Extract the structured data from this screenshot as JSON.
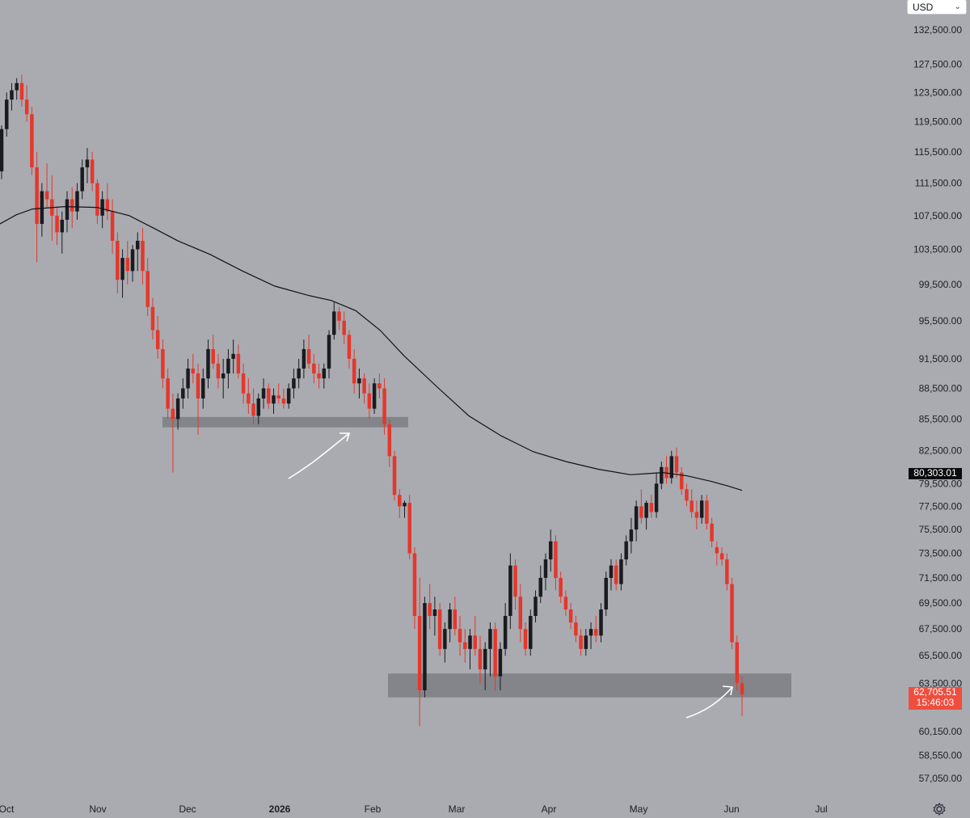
{
  "currency": {
    "label": "USD"
  },
  "chart_data": {
    "type": "candlestick",
    "y_axis": {
      "position": "right",
      "tick_labels": [
        "132,500.00",
        "127,500.00",
        "123,500.00",
        "119,500.00",
        "115,500.00",
        "111,500.00",
        "107,500.00",
        "103,500.00",
        "99,500.00",
        "95,500.00",
        "91,500.00",
        "88,500.00",
        "85,500.00",
        "82,500.00",
        "79,500.00",
        "77,500.00",
        "75,500.00",
        "73,500.00",
        "71,500.00",
        "69,500.00",
        "67,500.00",
        "65,500.00",
        "63,500.00",
        "60,150.00",
        "58,550.00",
        "57,050.00"
      ],
      "ticks": [
        132500,
        127500,
        123500,
        119500,
        115500,
        111500,
        107500,
        103500,
        99500,
        95500,
        91500,
        88500,
        85500,
        82500,
        79500,
        77500,
        75500,
        73500,
        71500,
        69500,
        67500,
        65500,
        63500,
        60150,
        58550,
        57050
      ],
      "scale": "log"
    },
    "x_axis": {
      "tick_labels": [
        "Oct",
        "Nov",
        "Dec",
        "2026",
        "Feb",
        "Mar",
        "Apr",
        "May",
        "Jun",
        "Jul"
      ],
      "bold": [
        false,
        false,
        false,
        true,
        false,
        false,
        false,
        false,
        false,
        false
      ]
    },
    "price_tags": {
      "moving_average": "80,303.01",
      "last_price": "62,705.51",
      "countdown": "15:46:03"
    },
    "moving_average": [
      [
        0,
        106500
      ],
      [
        20,
        107600
      ],
      [
        40,
        108300
      ],
      [
        80,
        108600
      ],
      [
        120,
        108500
      ],
      [
        160,
        107500
      ],
      [
        190,
        106000
      ],
      [
        220,
        104500
      ],
      [
        260,
        102900
      ],
      [
        300,
        101000
      ],
      [
        340,
        99300
      ],
      [
        380,
        98300
      ],
      [
        410,
        97700
      ],
      [
        440,
        96600
      ],
      [
        470,
        94500
      ],
      [
        500,
        91800
      ],
      [
        540,
        88700
      ],
      [
        580,
        85800
      ],
      [
        620,
        83900
      ],
      [
        660,
        82400
      ],
      [
        700,
        81500
      ],
      [
        740,
        80800
      ],
      [
        780,
        80300
      ],
      [
        800,
        80400
      ],
      [
        820,
        80500
      ],
      [
        850,
        80200
      ],
      [
        880,
        79700
      ],
      [
        900,
        79300
      ],
      [
        918,
        78900
      ]
    ],
    "support_zones": [
      {
        "from_day": 201,
        "to_day": 505,
        "low": 84700,
        "high": 85700
      },
      {
        "from_day": 480,
        "to_day": 979,
        "low": 62500,
        "high": 64200
      }
    ],
    "candles": [
      [
        113000,
        119000,
        112000,
        118500
      ],
      [
        118500,
        123500,
        117500,
        122500
      ],
      [
        122500,
        124800,
        121000,
        123800
      ],
      [
        123800,
        125500,
        122500,
        124800
      ],
      [
        124800,
        126000,
        121500,
        122500
      ],
      [
        122500,
        124500,
        119500,
        120500
      ],
      [
        120500,
        121500,
        112500,
        113500
      ],
      [
        113500,
        115500,
        102000,
        106500
      ],
      [
        106500,
        111500,
        105000,
        110500
      ],
      [
        110500,
        114000,
        108500,
        109500
      ],
      [
        109500,
        112500,
        104500,
        107500
      ],
      [
        107500,
        108500,
        104000,
        105500
      ],
      [
        105500,
        108000,
        103000,
        107000
      ],
      [
        107000,
        110500,
        105500,
        109500
      ],
      [
        109500,
        111000,
        106000,
        108000
      ],
      [
        108000,
        111500,
        107000,
        110500
      ],
      [
        110500,
        114500,
        109500,
        113500
      ],
      [
        113500,
        116000,
        111500,
        114500
      ],
      [
        114500,
        115500,
        110500,
        111500
      ],
      [
        111500,
        112000,
        106500,
        107500
      ],
      [
        107500,
        110500,
        106000,
        109500
      ],
      [
        109500,
        111500,
        107000,
        108000
      ],
      [
        108000,
        109500,
        103000,
        104500
      ],
      [
        104500,
        105500,
        98500,
        100000
      ],
      [
        100000,
        103500,
        98000,
        102500
      ],
      [
        102500,
        104500,
        99500,
        101000
      ],
      [
        101000,
        104000,
        99800,
        103500
      ],
      [
        103500,
        105500,
        101000,
        104500
      ],
      [
        104500,
        106000,
        99500,
        101000
      ],
      [
        101000,
        102500,
        96000,
        97000
      ],
      [
        97000,
        98000,
        93500,
        94500
      ],
      [
        94500,
        96000,
        91500,
        92500
      ],
      [
        92500,
        93500,
        88500,
        89500
      ],
      [
        89500,
        90500,
        85500,
        86500
      ],
      [
        86500,
        88000,
        80500,
        85500
      ],
      [
        85500,
        88000,
        84500,
        87500
      ],
      [
        87500,
        89500,
        86500,
        88500
      ],
      [
        88500,
        91500,
        87500,
        90500
      ],
      [
        90500,
        92000,
        89000,
        90000
      ],
      [
        90000,
        91000,
        84000,
        87500
      ],
      [
        87500,
        90500,
        86500,
        89500
      ],
      [
        89500,
        93500,
        88500,
        92500
      ],
      [
        92500,
        94000,
        90500,
        91000
      ],
      [
        91000,
        92000,
        88500,
        89500
      ],
      [
        89500,
        91500,
        87500,
        90000
      ],
      [
        90000,
        92500,
        88500,
        91500
      ],
      [
        91500,
        93500,
        90000,
        92000
      ],
      [
        92000,
        93000,
        89500,
        90000
      ],
      [
        90000,
        91000,
        87000,
        88000
      ],
      [
        88000,
        89500,
        86000,
        87000
      ],
      [
        87000,
        88500,
        85000,
        85800
      ],
      [
        85800,
        88000,
        85000,
        87500
      ],
      [
        87500,
        89500,
        86500,
        88500
      ],
      [
        88500,
        89000,
        86500,
        87000
      ],
      [
        87000,
        88500,
        86000,
        87800
      ],
      [
        87800,
        89000,
        87000,
        87500
      ],
      [
        87500,
        88500,
        86500,
        87000
      ],
      [
        87000,
        89000,
        86500,
        88500
      ],
      [
        88500,
        90500,
        87500,
        89500
      ],
      [
        89500,
        91500,
        88500,
        90500
      ],
      [
        90500,
        93500,
        89500,
        92500
      ],
      [
        92500,
        94000,
        90500,
        91000
      ],
      [
        91000,
        92000,
        89000,
        90000
      ],
      [
        90000,
        91000,
        88500,
        89500
      ],
      [
        89500,
        91000,
        88500,
        90500
      ],
      [
        90500,
        94500,
        89500,
        94000
      ],
      [
        94000,
        97500,
        93500,
        96500
      ],
      [
        96500,
        97000,
        94500,
        95500
      ],
      [
        95500,
        96500,
        93000,
        94000
      ],
      [
        94000,
        94500,
        90500,
        91500
      ],
      [
        91500,
        92500,
        88000,
        89000
      ],
      [
        89000,
        90500,
        87500,
        89500
      ],
      [
        89500,
        90000,
        87000,
        88000
      ],
      [
        88000,
        89000,
        85500,
        86500
      ],
      [
        86500,
        89500,
        86000,
        89000
      ],
      [
        89000,
        90000,
        87500,
        88500
      ],
      [
        88500,
        89500,
        84000,
        85000
      ],
      [
        85000,
        85500,
        81000,
        82000
      ],
      [
        82000,
        82500,
        78000,
        78500
      ],
      [
        78500,
        79000,
        76500,
        77500
      ],
      [
        77500,
        78000,
        76500,
        77800
      ],
      [
        77800,
        78500,
        73000,
        73500
      ],
      [
        73500,
        74000,
        67500,
        68500
      ],
      [
        68500,
        71500,
        60500,
        63000
      ],
      [
        63000,
        70000,
        62500,
        69500
      ],
      [
        69500,
        71000,
        67500,
        68500
      ],
      [
        68500,
        70000,
        67000,
        69000
      ],
      [
        69000,
        69500,
        65500,
        66000
      ],
      [
        66000,
        68000,
        65000,
        67500
      ],
      [
        67500,
        69500,
        66500,
        69000
      ],
      [
        69000,
        70000,
        67000,
        67500
      ],
      [
        67500,
        68500,
        65500,
        66500
      ],
      [
        66500,
        67500,
        65000,
        66000
      ],
      [
        66000,
        67500,
        64500,
        67000
      ],
      [
        67000,
        68500,
        65500,
        66000
      ],
      [
        66000,
        67000,
        63500,
        64500
      ],
      [
        64500,
        66500,
        63000,
        66000
      ],
      [
        66000,
        68000,
        64000,
        67500
      ],
      [
        67500,
        68000,
        63000,
        64000
      ],
      [
        64000,
        66500,
        63000,
        66000
      ],
      [
        66000,
        69500,
        65500,
        68500
      ],
      [
        68500,
        73500,
        67500,
        72500
      ],
      [
        72500,
        73000,
        69000,
        70000
      ],
      [
        70000,
        71000,
        66500,
        67500
      ],
      [
        67500,
        68000,
        65500,
        66000
      ],
      [
        66000,
        69000,
        65500,
        68500
      ],
      [
        68500,
        70500,
        68000,
        70000
      ],
      [
        70000,
        72500,
        69500,
        71500
      ],
      [
        71500,
        73500,
        70500,
        73000
      ],
      [
        73000,
        75500,
        72000,
        74500
      ],
      [
        74500,
        75000,
        70500,
        71500
      ],
      [
        71500,
        72000,
        69500,
        70000
      ],
      [
        70000,
        70500,
        68500,
        69000
      ],
      [
        69000,
        69500,
        67500,
        68000
      ],
      [
        68000,
        68500,
        66500,
        67000
      ],
      [
        67000,
        67500,
        65500,
        66000
      ],
      [
        66000,
        67500,
        65500,
        67000
      ],
      [
        67000,
        68000,
        66000,
        67500
      ],
      [
        67500,
        68500,
        66500,
        67000
      ],
      [
        67000,
        69500,
        66500,
        69000
      ],
      [
        69000,
        72000,
        68500,
        71500
      ],
      [
        71500,
        73000,
        70500,
        72500
      ],
      [
        72500,
        73000,
        70500,
        71000
      ],
      [
        71000,
        73500,
        70500,
        73000
      ],
      [
        73000,
        75000,
        72500,
        74500
      ],
      [
        74500,
        76500,
        73500,
        75500
      ],
      [
        75500,
        78000,
        74500,
        77500
      ],
      [
        77500,
        79000,
        76000,
        76500
      ],
      [
        76500,
        78000,
        75500,
        77800
      ],
      [
        77800,
        78500,
        76500,
        77000
      ],
      [
        77000,
        80500,
        76500,
        79500
      ],
      [
        79500,
        81500,
        79000,
        81000
      ],
      [
        81000,
        82000,
        79500,
        80000
      ],
      [
        80000,
        82500,
        79500,
        82000
      ],
      [
        82000,
        82800,
        80000,
        80500
      ],
      [
        80500,
        81000,
        78500,
        79000
      ],
      [
        79000,
        79500,
        77500,
        78000
      ],
      [
        78000,
        79000,
        76500,
        77000
      ],
      [
        77000,
        78000,
        75500,
        76500
      ],
      [
        76500,
        78500,
        76000,
        78000
      ],
      [
        78000,
        78500,
        75500,
        76000
      ],
      [
        76000,
        76500,
        74000,
        74500
      ],
      [
        74000,
        74500,
        72500,
        73500
      ],
      [
        73500,
        74000,
        72500,
        73000
      ],
      [
        73000,
        73500,
        70500,
        71000
      ],
      [
        71000,
        71500,
        66000,
        66500
      ],
      [
        66500,
        67000,
        63000,
        63500
      ],
      [
        63500,
        64000,
        61200,
        62705
      ]
    ]
  }
}
